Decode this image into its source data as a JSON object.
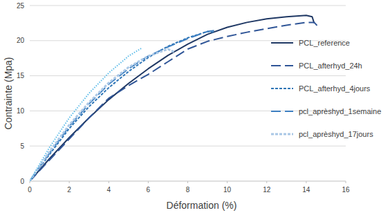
{
  "chart_data": {
    "type": "line",
    "x_label": "Déformation (%)",
    "y_label": "Contrainte (Mpa)",
    "xlim": [
      0,
      16
    ],
    "xticks": [
      0,
      2,
      4,
      6,
      8,
      10,
      12,
      14,
      16
    ],
    "ylim": [
      0,
      25
    ],
    "yticks": [
      0,
      5,
      10,
      15,
      20,
      25
    ],
    "grid": true,
    "legend": "right",
    "series": [
      {
        "name": "PCL_reference",
        "color": "#1f3864",
        "line_style": "solid",
        "x": [
          0,
          1,
          2,
          3,
          4,
          5,
          6,
          7,
          8,
          9,
          10,
          11,
          12,
          13,
          14,
          14.3,
          14.4
        ],
        "values": [
          0,
          3.2,
          6.2,
          9,
          11.6,
          13.9,
          16,
          17.9,
          19.5,
          20.9,
          21.9,
          22.6,
          23.1,
          23.4,
          23.6,
          23.4,
          22.5
        ]
      },
      {
        "name": "PCL_afterhyd_24h",
        "color": "#2f5597",
        "line_style": "longdash",
        "x": [
          0,
          1,
          2,
          3,
          4,
          5,
          6,
          7,
          8,
          9,
          10,
          11,
          12,
          13,
          14,
          14.4,
          14.6
        ],
        "values": [
          0,
          3,
          6,
          9,
          11.8,
          13.6,
          15.2,
          17,
          18.8,
          19.9,
          20.6,
          21.2,
          21.7,
          22.2,
          22.6,
          22.6,
          22
        ]
      },
      {
        "name": "PCL_afterhyd_4jours",
        "color": "#2e75b6",
        "line_style": "dash",
        "x": [
          0,
          1,
          2,
          3,
          4,
          5,
          6,
          7,
          8,
          9,
          9.3
        ],
        "values": [
          0,
          3.8,
          7.5,
          10.6,
          13.3,
          15.6,
          17.6,
          19.2,
          20.4,
          21.3,
          21.2
        ]
      },
      {
        "name": "pcl_aprèshyd_1semaine",
        "color": "#3d7fc1",
        "line_style": "longdash",
        "x": [
          0,
          1,
          2,
          3,
          4,
          5,
          6,
          7,
          8,
          9,
          9.5
        ],
        "values": [
          0,
          4,
          7.8,
          11,
          13.8,
          16,
          17.8,
          19.1,
          20.3,
          21.3,
          21.5
        ]
      },
      {
        "name": "pcl_aprèshyd_17jours",
        "color": "#a9c7e6",
        "line_style": "dash",
        "x": [
          0,
          1,
          2,
          3,
          4,
          5,
          6,
          7,
          7.3
        ],
        "values": [
          0,
          4.2,
          8,
          11.2,
          14,
          16.2,
          17.8,
          18.8,
          18.4
        ]
      },
      {
        "color": "#5bbbe8",
        "line_style": "dot",
        "x": [
          0,
          1,
          2,
          3,
          4,
          5,
          5.7
        ],
        "values": [
          0,
          4.8,
          9,
          12.5,
          15.4,
          17.8,
          19
        ]
      }
    ]
  }
}
